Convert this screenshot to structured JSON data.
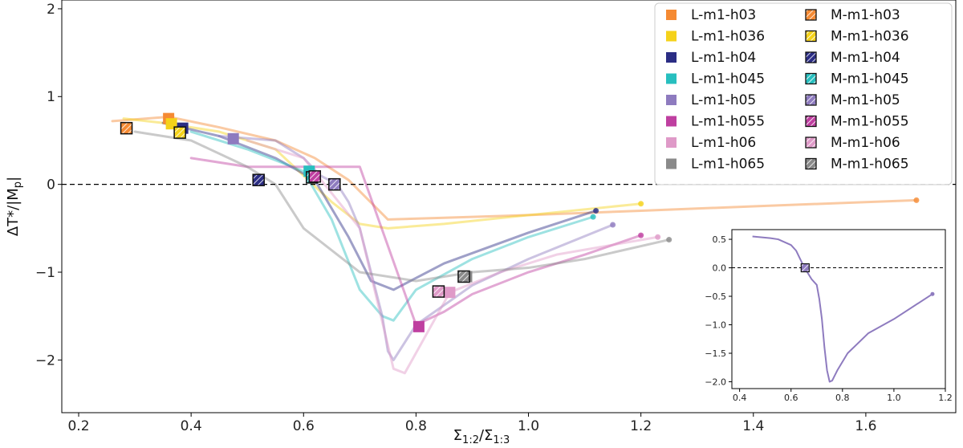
{
  "chart_data": [
    {
      "type": "line",
      "title": "",
      "xlabel": "Σ1:2/Σ1:3",
      "ylabel": "ΔT*/|Mp|",
      "xlim": [
        0.17,
        1.76
      ],
      "ylim": [
        -2.6,
        2.1
      ],
      "xticks": [
        0.2,
        0.4,
        0.6,
        0.8,
        1.0,
        1.2,
        1.4,
        1.6
      ],
      "xtick_labels": [
        "0.2",
        "0.4",
        "0.6",
        "0.8",
        "1.0",
        "1.2",
        "1.4",
        "1.6"
      ],
      "yticks": [
        -2,
        -1,
        0,
        1,
        2
      ],
      "ytick_labels": [
        "−2",
        "−1",
        "0",
        "1",
        "2"
      ],
      "reference_line": {
        "y": 0,
        "style": "dashed"
      },
      "legend_position": "top-right",
      "series": [
        {
          "name": "L-m1-h03",
          "color": "#f58a33",
          "marker": "square",
          "x": [
            0.26,
            0.3,
            0.36,
            0.45,
            0.55,
            0.62,
            0.68,
            0.75,
            0.85,
            1.0,
            1.2,
            1.4,
            1.69
          ],
          "y": [
            0.72,
            0.74,
            0.77,
            0.65,
            0.5,
            0.3,
            0.05,
            -0.4,
            -0.38,
            -0.35,
            -0.3,
            -0.25,
            -0.18
          ],
          "highlight": {
            "x": 0.36,
            "y": 0.75
          }
        },
        {
          "name": "L-m1-h036",
          "color": "#f5d21a",
          "marker": "square",
          "x": [
            0.28,
            0.35,
            0.45,
            0.55,
            0.6,
            0.65,
            0.7,
            0.75,
            0.85,
            1.0,
            1.2
          ],
          "y": [
            0.75,
            0.7,
            0.6,
            0.4,
            0.1,
            -0.2,
            -0.45,
            -0.5,
            -0.45,
            -0.35,
            -0.22
          ],
          "highlight": {
            "x": 0.365,
            "y": 0.69
          }
        },
        {
          "name": "L-m1-h04",
          "color": "#2b2d84",
          "marker": "square",
          "x": [
            0.35,
            0.45,
            0.55,
            0.62,
            0.68,
            0.72,
            0.76,
            0.85,
            1.0,
            1.12
          ],
          "y": [
            0.7,
            0.55,
            0.3,
            0.05,
            -0.6,
            -1.1,
            -1.2,
            -0.9,
            -0.55,
            -0.3
          ],
          "highlight": {
            "x": 0.385,
            "y": 0.64
          }
        },
        {
          "name": "L-m1-h045",
          "color": "#27bfbf",
          "marker": "square",
          "x": [
            0.4,
            0.5,
            0.6,
            0.65,
            0.7,
            0.74,
            0.76,
            0.8,
            0.9,
            1.0,
            1.115
          ],
          "y": [
            0.6,
            0.4,
            0.15,
            -0.4,
            -1.2,
            -1.5,
            -1.55,
            -1.2,
            -0.85,
            -0.6,
            -0.37
          ],
          "highlight": {
            "x": 0.61,
            "y": 0.15
          }
        },
        {
          "name": "L-m1-h05",
          "color": "#8e7bbf",
          "marker": "square",
          "x": [
            0.45,
            0.55,
            0.6,
            0.63,
            0.66,
            0.68,
            0.7,
            0.72,
            0.74,
            0.75,
            0.76,
            0.8,
            0.9,
            1.0,
            1.15
          ],
          "y": [
            0.55,
            0.5,
            0.3,
            0.1,
            0.0,
            -0.2,
            -0.5,
            -1.0,
            -1.5,
            -1.9,
            -2.0,
            -1.6,
            -1.15,
            -0.85,
            -0.46
          ],
          "highlight": {
            "x": 0.475,
            "y": 0.52
          }
        },
        {
          "name": "L-m1-h055",
          "color": "#bf3fa0",
          "marker": "square",
          "x": [
            0.4,
            0.5,
            0.6,
            0.7,
            0.8,
            0.85,
            0.9,
            1.0,
            1.1,
            1.2
          ],
          "y": [
            0.3,
            0.2,
            0.2,
            0.2,
            -1.6,
            -1.45,
            -1.25,
            -1.0,
            -0.8,
            -0.58
          ],
          "highlight": {
            "x": 0.805,
            "y": -1.62
          }
        },
        {
          "name": "L-m1-h06",
          "color": "#df9ac8",
          "marker": "square",
          "x": [
            0.5,
            0.6,
            0.7,
            0.76,
            0.78,
            0.86,
            0.95,
            1.05,
            1.23
          ],
          "y": [
            0.5,
            0.3,
            -0.5,
            -2.1,
            -2.15,
            -1.23,
            -1.0,
            -0.8,
            -0.6
          ],
          "highlight": {
            "x": 0.86,
            "y": -1.23
          }
        },
        {
          "name": "L-m1-h065",
          "color": "#8a8a8a",
          "marker": "square",
          "x": [
            0.3,
            0.4,
            0.5,
            0.55,
            0.6,
            0.7,
            0.8,
            0.9,
            1.0,
            1.1,
            1.25
          ],
          "y": [
            0.6,
            0.5,
            0.2,
            0.0,
            -0.5,
            -1.0,
            -1.1,
            -1.0,
            -0.95,
            -0.85,
            -0.63
          ],
          "highlight": {
            "x": 0.89,
            "y": -1.05
          }
        },
        {
          "name": "M-m1-h03",
          "color": "#f58a33",
          "marker": "hatched-square",
          "x": [
            0.285
          ],
          "y": [
            0.64
          ]
        },
        {
          "name": "M-m1-h036",
          "color": "#f5d21a",
          "marker": "hatched-square",
          "x": [
            0.38
          ],
          "y": [
            0.59
          ]
        },
        {
          "name": "M-m1-h04",
          "color": "#2b2d84",
          "marker": "hatched-square",
          "x": [
            0.52
          ],
          "y": [
            0.05
          ]
        },
        {
          "name": "M-m1-h045",
          "color": "#27bfbf",
          "marker": "hatched-square",
          "x": [
            0.615
          ],
          "y": [
            0.08
          ]
        },
        {
          "name": "M-m1-h05",
          "color": "#8e7bbf",
          "marker": "hatched-square",
          "x": [
            0.655
          ],
          "y": [
            0.0
          ]
        },
        {
          "name": "M-m1-h055",
          "color": "#bf3fa0",
          "marker": "hatched-square",
          "x": [
            0.62
          ],
          "y": [
            0.09
          ]
        },
        {
          "name": "M-m1-h06",
          "color": "#df9ac8",
          "marker": "hatched-square",
          "x": [
            0.84
          ],
          "y": [
            -1.22
          ]
        },
        {
          "name": "M-m1-h065",
          "color": "#8a8a8a",
          "marker": "hatched-square",
          "x": [
            0.885
          ],
          "y": [
            -1.05
          ]
        }
      ]
    },
    {
      "type": "line",
      "title": "",
      "xlabel": "",
      "ylabel": "",
      "xlim": [
        0.37,
        1.2
      ],
      "ylim": [
        -2.12,
        0.67
      ],
      "xticks": [
        0.4,
        0.6,
        0.8,
        1.0,
        1.2
      ],
      "xtick_labels": [
        "0.4",
        "0.6",
        "0.8",
        "1.0",
        "1.2"
      ],
      "yticks": [
        0.5,
        0.0,
        -0.5,
        -1.0,
        -1.5,
        -2.0
      ],
      "ytick_labels": [
        "0.5",
        "0.0",
        "−0.5",
        "−1.0",
        "−1.5",
        "−2.0"
      ],
      "reference_line": {
        "y": 0,
        "style": "dashed"
      },
      "series": [
        {
          "name": "L-m1-h05",
          "color": "#8e7bbf",
          "x": [
            0.45,
            0.52,
            0.55,
            0.6,
            0.62,
            0.65,
            0.68,
            0.7,
            0.71,
            0.72,
            0.73,
            0.74,
            0.75,
            0.76,
            0.78,
            0.82,
            0.9,
            1.0,
            1.15
          ],
          "y": [
            0.55,
            0.52,
            0.5,
            0.4,
            0.3,
            0.02,
            -0.2,
            -0.3,
            -0.55,
            -0.9,
            -1.4,
            -1.8,
            -2.0,
            -1.98,
            -1.8,
            -1.5,
            -1.15,
            -0.9,
            -0.46
          ],
          "highlight": {
            "x": 0.655,
            "y": 0.0
          }
        }
      ]
    }
  ]
}
